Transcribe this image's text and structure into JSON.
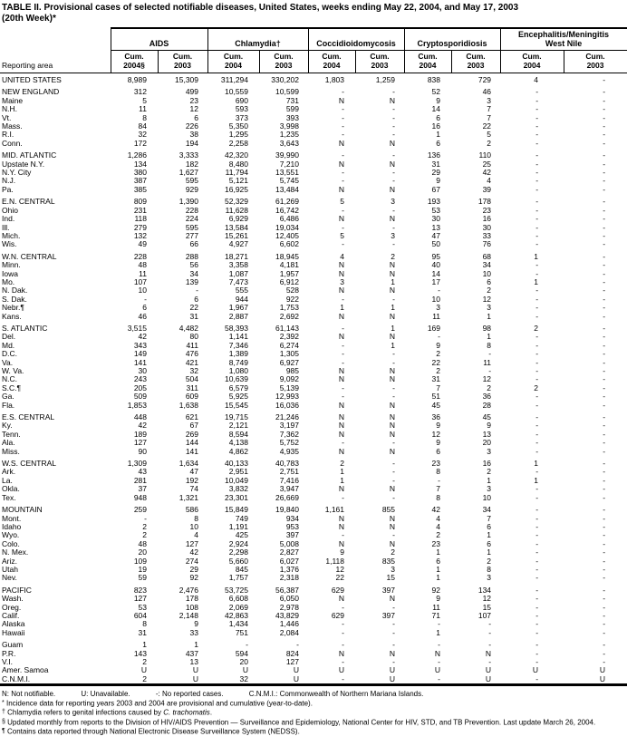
{
  "title": {
    "line1": "TABLE II. Provisional cases of selected notifiable diseases, United States, weeks ending May 22, 2004, and May 17, 2003",
    "line2": "(20th Week)*"
  },
  "table": {
    "reporting_area_label": "Reporting area",
    "column_groups": [
      {
        "label": "AIDS",
        "sub": [
          "Cum.\n2004§",
          "Cum.\n2003"
        ]
      },
      {
        "label": "Chlamydia†",
        "sub": [
          "Cum.\n2004",
          "Cum.\n2003"
        ]
      },
      {
        "label": "Coccidioidomycosis",
        "sub": [
          "Cum.\n2004",
          "Cum.\n2003"
        ]
      },
      {
        "label": "Cryptosporidiosis",
        "sub": [
          "Cum.\n2004",
          "Cum.\n2003"
        ]
      },
      {
        "label": "Encephalitis/Meningitis\nWest Nile",
        "sub": [
          "Cum.\n2004",
          "Cum.\n2003"
        ]
      }
    ],
    "groups": [
      {
        "rows": [
          [
            "UNITED STATES",
            "8,989",
            "15,309",
            "311,294",
            "330,202",
            "1,803",
            "1,259",
            "838",
            "729",
            "4",
            "-"
          ]
        ]
      },
      {
        "rows": [
          [
            "NEW ENGLAND",
            "312",
            "499",
            "10,559",
            "10,599",
            "-",
            "-",
            "52",
            "46",
            "-",
            "-"
          ],
          [
            "Maine",
            "5",
            "23",
            "690",
            "731",
            "N",
            "N",
            "9",
            "3",
            "-",
            "-"
          ],
          [
            "N.H.",
            "11",
            "12",
            "593",
            "599",
            "-",
            "-",
            "14",
            "7",
            "-",
            "-"
          ],
          [
            "Vt.",
            "8",
            "6",
            "373",
            "393",
            "-",
            "-",
            "6",
            "7",
            "-",
            "-"
          ],
          [
            "Mass.",
            "84",
            "226",
            "5,350",
            "3,998",
            "-",
            "-",
            "16",
            "22",
            "-",
            "-"
          ],
          [
            "R.I.",
            "32",
            "38",
            "1,295",
            "1,235",
            "-",
            "-",
            "1",
            "5",
            "-",
            "-"
          ],
          [
            "Conn.",
            "172",
            "194",
            "2,258",
            "3,643",
            "N",
            "N",
            "6",
            "2",
            "-",
            "-"
          ]
        ]
      },
      {
        "rows": [
          [
            "MID. ATLANTIC",
            "1,286",
            "3,333",
            "42,320",
            "39,990",
            "-",
            "-",
            "136",
            "110",
            "-",
            "-"
          ],
          [
            "Upstate N.Y.",
            "134",
            "182",
            "8,480",
            "7,210",
            "N",
            "N",
            "31",
            "25",
            "-",
            "-"
          ],
          [
            "N.Y. City",
            "380",
            "1,627",
            "11,794",
            "13,551",
            "-",
            "-",
            "29",
            "42",
            "-",
            "-"
          ],
          [
            "N.J.",
            "387",
            "595",
            "5,121",
            "5,745",
            "-",
            "-",
            "9",
            "4",
            "-",
            "-"
          ],
          [
            "Pa.",
            "385",
            "929",
            "16,925",
            "13,484",
            "N",
            "N",
            "67",
            "39",
            "-",
            "-"
          ]
        ]
      },
      {
        "rows": [
          [
            "E.N. CENTRAL",
            "809",
            "1,390",
            "52,329",
            "61,269",
            "5",
            "3",
            "193",
            "178",
            "-",
            "-"
          ],
          [
            "Ohio",
            "231",
            "228",
            "11,628",
            "16,742",
            "-",
            "-",
            "53",
            "23",
            "-",
            "-"
          ],
          [
            "Ind.",
            "118",
            "224",
            "6,929",
            "6,486",
            "N",
            "N",
            "30",
            "16",
            "-",
            "-"
          ],
          [
            "Ill.",
            "279",
            "595",
            "13,584",
            "19,034",
            "-",
            "-",
            "13",
            "30",
            "-",
            "-"
          ],
          [
            "Mich.",
            "132",
            "277",
            "15,261",
            "12,405",
            "5",
            "3",
            "47",
            "33",
            "-",
            "-"
          ],
          [
            "Wis.",
            "49",
            "66",
            "4,927",
            "6,602",
            "-",
            "-",
            "50",
            "76",
            "-",
            "-"
          ]
        ]
      },
      {
        "rows": [
          [
            "W.N. CENTRAL",
            "228",
            "288",
            "18,271",
            "18,945",
            "4",
            "2",
            "95",
            "68",
            "1",
            "-"
          ],
          [
            "Minn.",
            "48",
            "56",
            "3,358",
            "4,181",
            "N",
            "N",
            "40",
            "34",
            "-",
            "-"
          ],
          [
            "Iowa",
            "11",
            "34",
            "1,087",
            "1,957",
            "N",
            "N",
            "14",
            "10",
            "-",
            "-"
          ],
          [
            "Mo.",
            "107",
            "139",
            "7,473",
            "6,912",
            "3",
            "1",
            "17",
            "6",
            "1",
            "-"
          ],
          [
            "N. Dak.",
            "10",
            "-",
            "555",
            "528",
            "N",
            "N",
            "-",
            "2",
            "-",
            "-"
          ],
          [
            "S. Dak.",
            "-",
            "6",
            "944",
            "922",
            "-",
            "-",
            "10",
            "12",
            "-",
            "-"
          ],
          [
            "Nebr.¶",
            "6",
            "22",
            "1,967",
            "1,753",
            "1",
            "1",
            "3",
            "3",
            "-",
            "-"
          ],
          [
            "Kans.",
            "46",
            "31",
            "2,887",
            "2,692",
            "N",
            "N",
            "11",
            "1",
            "-",
            "-"
          ]
        ]
      },
      {
        "rows": [
          [
            "S. ATLANTIC",
            "3,515",
            "4,482",
            "58,393",
            "61,143",
            "-",
            "1",
            "169",
            "98",
            "2",
            "-"
          ],
          [
            "Del.",
            "42",
            "80",
            "1,141",
            "2,392",
            "N",
            "N",
            "-",
            "1",
            "-",
            "-"
          ],
          [
            "Md.",
            "343",
            "411",
            "7,346",
            "6,274",
            "-",
            "1",
            "9",
            "8",
            "-",
            "-"
          ],
          [
            "D.C.",
            "149",
            "476",
            "1,389",
            "1,305",
            "-",
            "-",
            "2",
            "-",
            "-",
            "-"
          ],
          [
            "Va.",
            "141",
            "421",
            "8,749",
            "6,927",
            "-",
            "-",
            "22",
            "11",
            "-",
            "-"
          ],
          [
            "W. Va.",
            "30",
            "32",
            "1,080",
            "985",
            "N",
            "N",
            "2",
            "-",
            "-",
            "-"
          ],
          [
            "N.C.",
            "243",
            "504",
            "10,639",
            "9,092",
            "N",
            "N",
            "31",
            "12",
            "-",
            "-"
          ],
          [
            "S.C.¶",
            "205",
            "311",
            "6,579",
            "5,139",
            "-",
            "-",
            "7",
            "2",
            "2",
            "-"
          ],
          [
            "Ga.",
            "509",
            "609",
            "5,925",
            "12,993",
            "-",
            "-",
            "51",
            "36",
            "-",
            "-"
          ],
          [
            "Fla.",
            "1,853",
            "1,638",
            "15,545",
            "16,036",
            "N",
            "N",
            "45",
            "28",
            "-",
            "-"
          ]
        ]
      },
      {
        "rows": [
          [
            "E.S. CENTRAL",
            "448",
            "621",
            "19,715",
            "21,246",
            "N",
            "N",
            "36",
            "45",
            "-",
            "-"
          ],
          [
            "Ky.",
            "42",
            "67",
            "2,121",
            "3,197",
            "N",
            "N",
            "9",
            "9",
            "-",
            "-"
          ],
          [
            "Tenn.",
            "189",
            "269",
            "8,594",
            "7,362",
            "N",
            "N",
            "12",
            "13",
            "-",
            "-"
          ],
          [
            "Ala.",
            "127",
            "144",
            "4,138",
            "5,752",
            "-",
            "-",
            "9",
            "20",
            "-",
            "-"
          ],
          [
            "Miss.",
            "90",
            "141",
            "4,862",
            "4,935",
            "N",
            "N",
            "6",
            "3",
            "-",
            "-"
          ]
        ]
      },
      {
        "rows": [
          [
            "W.S. CENTRAL",
            "1,309",
            "1,634",
            "40,133",
            "40,783",
            "2",
            "-",
            "23",
            "16",
            "1",
            "-"
          ],
          [
            "Ark.",
            "43",
            "47",
            "2,951",
            "2,751",
            "1",
            "-",
            "8",
            "2",
            "-",
            "-"
          ],
          [
            "La.",
            "281",
            "192",
            "10,049",
            "7,416",
            "1",
            "-",
            "-",
            "1",
            "1",
            "-"
          ],
          [
            "Okla.",
            "37",
            "74",
            "3,832",
            "3,947",
            "N",
            "N",
            "7",
            "3",
            "-",
            "-"
          ],
          [
            "Tex.",
            "948",
            "1,321",
            "23,301",
            "26,669",
            "-",
            "-",
            "8",
            "10",
            "-",
            "-"
          ]
        ]
      },
      {
        "rows": [
          [
            "MOUNTAIN",
            "259",
            "586",
            "15,849",
            "19,840",
            "1,161",
            "855",
            "42",
            "34",
            "-",
            "-"
          ],
          [
            "Mont.",
            "-",
            "8",
            "749",
            "934",
            "N",
            "N",
            "4",
            "7",
            "-",
            "-"
          ],
          [
            "Idaho",
            "2",
            "10",
            "1,191",
            "953",
            "N",
            "N",
            "4",
            "6",
            "-",
            "-"
          ],
          [
            "Wyo.",
            "2",
            "4",
            "425",
            "397",
            "-",
            "-",
            "2",
            "1",
            "-",
            "-"
          ],
          [
            "Colo.",
            "48",
            "127",
            "2,924",
            "5,008",
            "N",
            "N",
            "23",
            "6",
            "-",
            "-"
          ],
          [
            "N. Mex.",
            "20",
            "42",
            "2,298",
            "2,827",
            "9",
            "2",
            "1",
            "1",
            "-",
            "-"
          ],
          [
            "Ariz.",
            "109",
            "274",
            "5,660",
            "6,027",
            "1,118",
            "835",
            "6",
            "2",
            "-",
            "-"
          ],
          [
            "Utah",
            "19",
            "29",
            "845",
            "1,376",
            "12",
            "3",
            "1",
            "8",
            "-",
            "-"
          ],
          [
            "Nev.",
            "59",
            "92",
            "1,757",
            "2,318",
            "22",
            "15",
            "1",
            "3",
            "-",
            "-"
          ]
        ]
      },
      {
        "rows": [
          [
            "PACIFIC",
            "823",
            "2,476",
            "53,725",
            "56,387",
            "629",
            "397",
            "92",
            "134",
            "-",
            "-"
          ],
          [
            "Wash.",
            "127",
            "178",
            "6,608",
            "6,050",
            "N",
            "N",
            "9",
            "12",
            "-",
            "-"
          ],
          [
            "Oreg.",
            "53",
            "108",
            "2,069",
            "2,978",
            "-",
            "-",
            "11",
            "15",
            "-",
            "-"
          ],
          [
            "Calif.",
            "604",
            "2,148",
            "42,863",
            "43,829",
            "629",
            "397",
            "71",
            "107",
            "-",
            "-"
          ],
          [
            "Alaska",
            "8",
            "9",
            "1,434",
            "1,446",
            "-",
            "-",
            "-",
            "-",
            "-",
            "-"
          ],
          [
            "Hawaii",
            "31",
            "33",
            "751",
            "2,084",
            "-",
            "-",
            "1",
            "-",
            "-",
            "-"
          ]
        ]
      },
      {
        "rows": [
          [
            "Guam",
            "1",
            "1",
            "-",
            "-",
            "-",
            "-",
            "-",
            "-",
            "-",
            "-"
          ],
          [
            "P.R.",
            "143",
            "437",
            "594",
            "824",
            "N",
            "N",
            "N",
            "N",
            "-",
            "-"
          ],
          [
            "V.I.",
            "2",
            "13",
            "20",
            "127",
            "-",
            "-",
            "-",
            "-",
            "-",
            "-"
          ],
          [
            "Amer. Samoa",
            "U",
            "U",
            "U",
            "U",
            "U",
            "U",
            "U",
            "U",
            "U",
            "U"
          ],
          [
            "C.N.M.I.",
            "2",
            "U",
            "32",
            "U",
            "-",
            "U",
            "-",
            "U",
            "-",
            "U"
          ]
        ]
      }
    ]
  },
  "footnote_legend": {
    "items": [
      "N: Not notifiable.",
      "U: Unavailable.",
      "-: No reported cases.",
      "C.N.M.I.: Commonwealth of Northern Mariana Islands."
    ]
  },
  "footnotes": [
    {
      "marker": "*",
      "text": "Incidence data for reporting years 2003 and 2004 are provisional and cumulative (year-to-date)."
    },
    {
      "marker": "†",
      "text_prefix": "Chlamydia refers to genital infections caused by ",
      "italic": "C. trachomatis",
      "text_suffix": "."
    },
    {
      "marker": "§",
      "text": "Updated monthly from reports to the Division of HIV/AIDS Prevention — Surveillance and Epidemiology, National Center for HIV, STD, and TB Prevention. Last update March 26, 2004."
    },
    {
      "marker": "¶",
      "text": "Contains data reported through National Electronic Disease Surveillance System (NEDSS)."
    }
  ]
}
